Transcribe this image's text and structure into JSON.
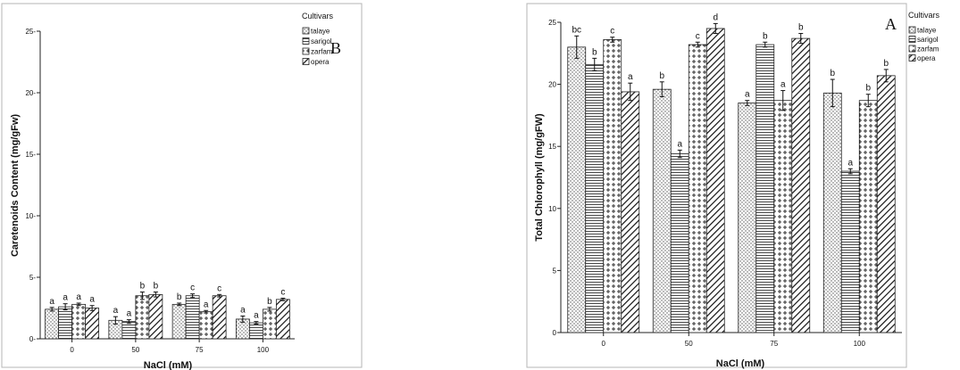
{
  "patterns": {
    "talaye": "dots",
    "sarigol": "hlines",
    "zarfam": "crosses",
    "opera": "diagonal"
  },
  "chart_data": [
    {
      "type": "bar",
      "panel_label": "B",
      "xlabel": "NaCl (mM)",
      "ylabel": "Caretenoids Content (mg/gFw)",
      "categories": [
        "0",
        "50",
        "75",
        "100"
      ],
      "ylim": [
        0,
        25
      ],
      "yticks": [
        0,
        5,
        10,
        15,
        20,
        25
      ],
      "tick_suffix": "-",
      "legend_title": "Cultivars",
      "legend_position": "top-right",
      "grid": false,
      "series": [
        {
          "name": "talaye",
          "values": [
            2.4,
            1.5,
            2.8,
            1.6
          ],
          "errors": [
            0.15,
            0.3,
            0.1,
            0.25
          ],
          "labels": [
            "a",
            "a",
            "b",
            "a"
          ]
        },
        {
          "name": "sarigol",
          "values": [
            2.6,
            1.4,
            3.5,
            1.3
          ],
          "errors": [
            0.25,
            0.15,
            0.15,
            0.1
          ],
          "labels": [
            "a",
            "a",
            "c",
            "a"
          ]
        },
        {
          "name": "zarfam",
          "values": [
            2.8,
            3.5,
            2.2,
            2.4
          ],
          "errors": [
            0.1,
            0.3,
            0.1,
            0.15
          ],
          "labels": [
            "a",
            "b",
            "a",
            "b"
          ]
        },
        {
          "name": "opera",
          "values": [
            2.5,
            3.6,
            3.5,
            3.2
          ],
          "errors": [
            0.2,
            0.2,
            0.1,
            0.1
          ],
          "labels": [
            "a",
            "b",
            "c",
            "c"
          ]
        }
      ]
    },
    {
      "type": "bar",
      "panel_label": "A",
      "xlabel": "NaCl (mM)",
      "ylabel": "Total Chlorophyll (mg/gFW)",
      "categories": [
        "0",
        "50",
        "75",
        "100"
      ],
      "ylim": [
        0,
        25
      ],
      "yticks": [
        0,
        5,
        10,
        15,
        20,
        25
      ],
      "tick_suffix": "",
      "legend_title": "Cultivars",
      "legend_position": "top-right",
      "grid": false,
      "series": [
        {
          "name": "talaye",
          "values": [
            23.0,
            19.6,
            18.5,
            19.3
          ],
          "errors": [
            0.9,
            0.6,
            0.2,
            1.1
          ],
          "labels": [
            "bc",
            "b",
            "a",
            "b"
          ]
        },
        {
          "name": "sarigol",
          "values": [
            21.6,
            14.4,
            23.2,
            13.0
          ],
          "errors": [
            0.5,
            0.3,
            0.2,
            0.2
          ],
          "labels": [
            "b",
            "a",
            "b",
            "a"
          ]
        },
        {
          "name": "zarfam",
          "values": [
            23.6,
            23.2,
            18.7,
            18.7
          ],
          "errors": [
            0.2,
            0.2,
            0.8,
            0.5
          ],
          "labels": [
            "c",
            "c",
            "a",
            "b"
          ]
        },
        {
          "name": "opera",
          "values": [
            19.4,
            24.5,
            23.7,
            20.7
          ],
          "errors": [
            0.7,
            0.4,
            0.4,
            0.5
          ],
          "labels": [
            "a",
            "d",
            "b",
            "b"
          ]
        }
      ]
    }
  ]
}
